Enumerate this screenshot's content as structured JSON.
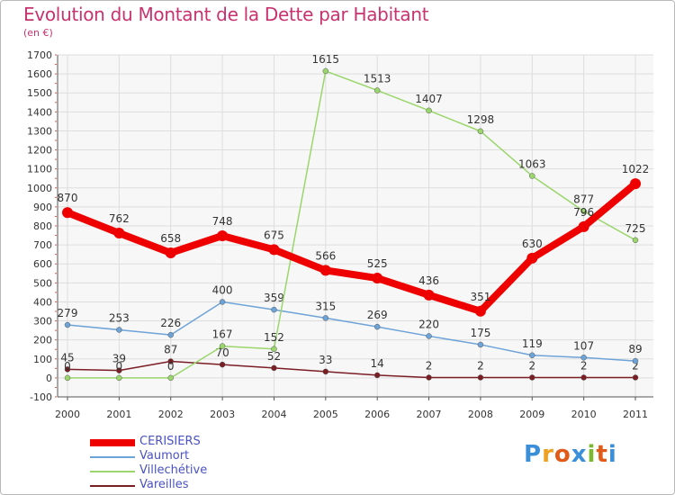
{
  "header": {
    "title": "Evolution du Montant de la Dette par Habitant",
    "subtitle": "(en €)"
  },
  "logo": {
    "text": "Proxiti",
    "letters": [
      "P",
      "r",
      "o",
      "x",
      "i",
      "t",
      "i"
    ],
    "colors": [
      "#3b8fd8",
      "#f0a020",
      "#e05a1a",
      "#3b8fd8",
      "#7ab82e",
      "#e05a1a",
      "#3b8fd8"
    ]
  },
  "chart_data": {
    "type": "line",
    "title": "Evolution du Montant de la Dette par Habitant",
    "subtitle": "(en €)",
    "xlabel": "",
    "ylabel": "",
    "x": [
      "2000",
      "2001",
      "2002",
      "2003",
      "2004",
      "2005",
      "2006",
      "2007",
      "2008",
      "2009",
      "2010",
      "2011"
    ],
    "ylim": [
      -100,
      1700
    ],
    "yticks": [
      -100,
      0,
      100,
      200,
      300,
      400,
      500,
      600,
      700,
      800,
      900,
      1000,
      1100,
      1200,
      1300,
      1400,
      1500,
      1600,
      1700
    ],
    "grid": true,
    "legend_position": "bottom-left",
    "series": [
      {
        "name": "CERISIERS",
        "color": "#ee0000",
        "values": [
          870,
          762,
          658,
          748,
          675,
          566,
          525,
          436,
          351,
          630,
          796,
          1022
        ],
        "labels": [
          "870",
          "762",
          "658",
          "748",
          "675",
          "566",
          "525",
          "436",
          "351",
          "630",
          "796",
          "1022"
        ]
      },
      {
        "name": "Vaumort",
        "color": "#6ea3d8",
        "values": [
          279,
          253,
          226,
          400,
          359,
          315,
          269,
          220,
          175,
          119,
          107,
          89
        ],
        "labels": [
          "279",
          "253",
          "226",
          "400",
          "359",
          "315",
          "269",
          "220",
          "175",
          "119",
          "107",
          "89"
        ]
      },
      {
        "name": "Villechétive",
        "color": "#9ad66c",
        "values": [
          0,
          0,
          0,
          167,
          152,
          1615,
          1513,
          1407,
          1298,
          1063,
          877,
          725
        ],
        "labels": [
          "0",
          "0",
          "0",
          "167",
          "152",
          "1615",
          "1513",
          "1407",
          "1298",
          "1063",
          "877",
          "725"
        ]
      },
      {
        "name": "Vareilles",
        "color": "#7b1e24",
        "values": [
          45,
          39,
          87,
          70,
          52,
          33,
          14,
          2,
          2,
          2,
          2,
          2
        ],
        "labels": [
          "45",
          "39",
          "87",
          "70",
          "52",
          "33",
          "14",
          "2",
          "2",
          "2",
          "2",
          "2"
        ]
      }
    ]
  }
}
